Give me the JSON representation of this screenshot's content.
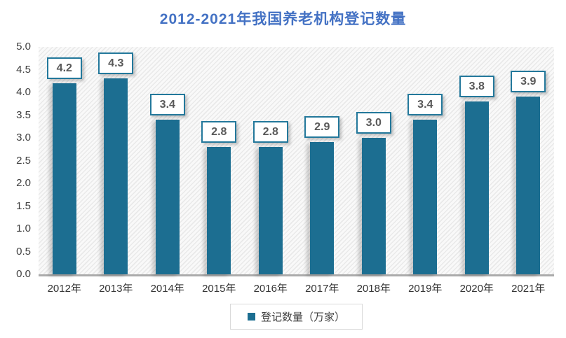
{
  "chart_data": {
    "type": "bar",
    "title": "2012-2021年我国养老机构登记数量",
    "categories": [
      "2012年",
      "2013年",
      "2014年",
      "2015年",
      "2016年",
      "2017年",
      "2018年",
      "2019年",
      "2020年",
      "2021年"
    ],
    "values": [
      4.2,
      4.3,
      3.4,
      2.8,
      2.8,
      2.9,
      3.0,
      3.4,
      3.8,
      3.9
    ],
    "data_labels": [
      "4.2",
      "4.3",
      "3.4",
      "2.8",
      "2.8",
      "2.9",
      "3.0",
      "3.4",
      "3.8",
      "3.9"
    ],
    "series_name": "登记数量（万家）",
    "xlabel": "",
    "ylabel": "",
    "ylim": [
      0,
      5
    ],
    "ytick_labels": [
      "0.0",
      "0.5",
      "1.0",
      "1.5",
      "2.0",
      "2.5",
      "3.0",
      "3.5",
      "4.0",
      "4.5",
      "5.0"
    ],
    "grid": false,
    "legend_position": "bottom",
    "legend_marker_icon": "square-marker",
    "colors": {
      "bar": "#1c6e91",
      "label_box_border": "#23789b",
      "title": "#4472c4",
      "axis_line": "#ababab",
      "legend_border": "#d9d9d9",
      "tick_text": "#404040",
      "data_label_text": "#595959"
    }
  }
}
